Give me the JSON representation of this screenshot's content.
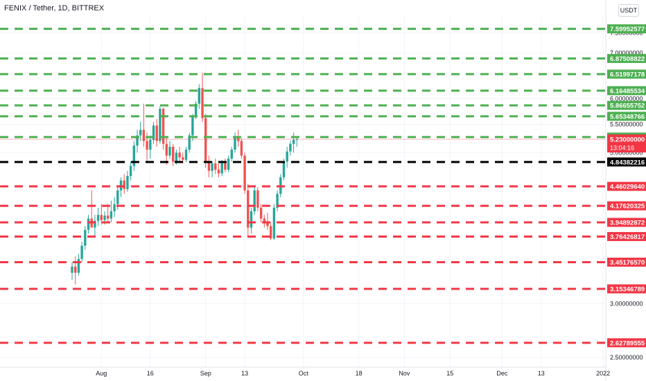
{
  "header": {
    "title": "FENIX / Tether, 1D, BITTREX",
    "currency_button": "USDT"
  },
  "chart_data": {
    "type": "candlestick",
    "symbol": "FENIX / Tether, 1D, BITTREX",
    "y_scale": "log",
    "ylim": [
      2.42,
      7.92
    ],
    "y_ticks": [
      {
        "v": 7.5,
        "label": "7.50000000"
      },
      {
        "v": 7.0,
        "label": "7.00000000"
      },
      {
        "v": 6.0,
        "label": "6.00000000"
      },
      {
        "v": 5.5,
        "label": "5.50000000"
      },
      {
        "v": 5.0,
        "label": "5.00000000"
      },
      {
        "v": 3.0,
        "label": "3.00000000"
      },
      {
        "v": 2.5,
        "label": "2.50000000"
      }
    ],
    "x_ticks": [
      {
        "day": 29,
        "label": "Aug"
      },
      {
        "day": 44,
        "label": "16"
      },
      {
        "day": 61,
        "label": "Sep"
      },
      {
        "day": 73,
        "label": "13"
      },
      {
        "day": 91,
        "label": "Oct"
      },
      {
        "day": 108,
        "label": "18"
      },
      {
        "day": 122,
        "label": "Nov"
      },
      {
        "day": 136,
        "label": "15"
      },
      {
        "day": 152,
        "label": "Dec"
      },
      {
        "day": 164,
        "label": "13"
      },
      {
        "day": 183,
        "label": "2022"
      }
    ],
    "levels": [
      {
        "value": 7.59952577,
        "label": "7.59952577",
        "color": "#4caf50"
      },
      {
        "value": 6.87508822,
        "label": "6.87508822",
        "color": "#4caf50"
      },
      {
        "value": 6.51997178,
        "label": "6.51997178",
        "color": "#4caf50"
      },
      {
        "value": 6.16485534,
        "label": "6.16485534",
        "color": "#4caf50"
      },
      {
        "value": 5.86655752,
        "label": "5.86655752",
        "color": "#4caf50"
      },
      {
        "value": 5.65348766,
        "label": "5.65348766",
        "color": "#4caf50"
      },
      {
        "value": 5.2699619,
        "label": "5.26996190",
        "color": "#4caf50"
      },
      {
        "value": 4.84382216,
        "label": "4.84382216",
        "color": "#000000"
      },
      {
        "value": 4.4602964,
        "label": "4.46029640",
        "color": "#f23645"
      },
      {
        "value": 4.17620325,
        "label": "4.17620325",
        "color": "#f23645"
      },
      {
        "value": 3.94892872,
        "label": "3.94892872",
        "color": "#f23645"
      },
      {
        "value": 3.76426817,
        "label": "3.76426817",
        "color": "#f23645"
      },
      {
        "value": 3.4517657,
        "label": "3.45176570",
        "color": "#f23645"
      },
      {
        "value": 3.15346789,
        "label": "3.15346789",
        "color": "#f23645"
      },
      {
        "value": 2.62789555,
        "label": "2.62789555",
        "color": "#f23645"
      }
    ],
    "last_price": {
      "value": 5.23,
      "label": "5.23000000",
      "countdown": "13:04:16",
      "color": "#f23645"
    },
    "colors": {
      "up": "#26a69a",
      "down": "#ef5350"
    },
    "candles": [
      {
        "d": 20,
        "o": 3.33,
        "h": 3.45,
        "l": 3.25,
        "c": 3.4
      },
      {
        "d": 21,
        "o": 3.4,
        "h": 3.52,
        "l": 3.2,
        "c": 3.33
      },
      {
        "d": 22,
        "o": 3.33,
        "h": 3.55,
        "l": 3.3,
        "c": 3.49
      },
      {
        "d": 23,
        "o": 3.49,
        "h": 3.7,
        "l": 3.45,
        "c": 3.65
      },
      {
        "d": 24,
        "o": 3.65,
        "h": 3.9,
        "l": 3.6,
        "c": 3.85
      },
      {
        "d": 25,
        "o": 3.85,
        "h": 4.05,
        "l": 3.8,
        "c": 4.0
      },
      {
        "d": 26,
        "o": 4.0,
        "h": 4.4,
        "l": 3.9,
        "c": 3.88
      },
      {
        "d": 27,
        "o": 3.88,
        "h": 4.05,
        "l": 3.75,
        "c": 3.97
      },
      {
        "d": 28,
        "o": 3.97,
        "h": 4.15,
        "l": 3.9,
        "c": 4.05
      },
      {
        "d": 29,
        "o": 4.05,
        "h": 4.2,
        "l": 3.92,
        "c": 3.98
      },
      {
        "d": 30,
        "o": 3.98,
        "h": 4.1,
        "l": 3.92,
        "c": 4.04
      },
      {
        "d": 31,
        "o": 4.04,
        "h": 4.2,
        "l": 3.95,
        "c": 4.0
      },
      {
        "d": 32,
        "o": 4.0,
        "h": 4.25,
        "l": 3.95,
        "c": 4.1
      },
      {
        "d": 33,
        "o": 4.1,
        "h": 4.3,
        "l": 4.02,
        "c": 4.2
      },
      {
        "d": 34,
        "o": 4.2,
        "h": 4.45,
        "l": 4.12,
        "c": 4.4
      },
      {
        "d": 35,
        "o": 4.4,
        "h": 4.6,
        "l": 4.3,
        "c": 4.55
      },
      {
        "d": 36,
        "o": 4.55,
        "h": 4.65,
        "l": 4.35,
        "c": 4.42
      },
      {
        "d": 37,
        "o": 4.42,
        "h": 4.7,
        "l": 4.38,
        "c": 4.62
      },
      {
        "d": 38,
        "o": 4.62,
        "h": 4.85,
        "l": 4.55,
        "c": 4.78
      },
      {
        "d": 39,
        "o": 4.78,
        "h": 5.2,
        "l": 4.7,
        "c": 5.12
      },
      {
        "d": 40,
        "o": 5.12,
        "h": 5.4,
        "l": 5.0,
        "c": 5.3
      },
      {
        "d": 41,
        "o": 5.3,
        "h": 5.55,
        "l": 5.2,
        "c": 5.4
      },
      {
        "d": 42,
        "o": 5.4,
        "h": 5.9,
        "l": 5.1,
        "c": 5.2
      },
      {
        "d": 43,
        "o": 5.2,
        "h": 5.35,
        "l": 4.85,
        "c": 5.05
      },
      {
        "d": 44,
        "o": 5.05,
        "h": 5.3,
        "l": 4.9,
        "c": 5.22
      },
      {
        "d": 45,
        "o": 5.22,
        "h": 5.55,
        "l": 5.15,
        "c": 5.48
      },
      {
        "d": 46,
        "o": 5.48,
        "h": 5.6,
        "l": 5.1,
        "c": 5.2
      },
      {
        "d": 47,
        "o": 5.2,
        "h": 5.85,
        "l": 5.15,
        "c": 5.8
      },
      {
        "d": 48,
        "o": 5.8,
        "h": 5.82,
        "l": 5.05,
        "c": 5.15
      },
      {
        "d": 49,
        "o": 5.15,
        "h": 5.25,
        "l": 4.8,
        "c": 4.95
      },
      {
        "d": 50,
        "o": 4.95,
        "h": 5.2,
        "l": 4.9,
        "c": 5.1
      },
      {
        "d": 51,
        "o": 5.1,
        "h": 5.15,
        "l": 4.78,
        "c": 4.85
      },
      {
        "d": 52,
        "o": 4.85,
        "h": 5.05,
        "l": 4.8,
        "c": 5.0
      },
      {
        "d": 53,
        "o": 5.0,
        "h": 5.1,
        "l": 4.85,
        "c": 4.92
      },
      {
        "d": 54,
        "o": 4.92,
        "h": 5.0,
        "l": 4.82,
        "c": 4.88
      },
      {
        "d": 55,
        "o": 4.88,
        "h": 5.1,
        "l": 4.84,
        "c": 5.05
      },
      {
        "d": 56,
        "o": 5.05,
        "h": 5.35,
        "l": 5.0,
        "c": 5.3
      },
      {
        "d": 57,
        "o": 5.3,
        "h": 5.7,
        "l": 5.2,
        "c": 5.65
      },
      {
        "d": 58,
        "o": 5.65,
        "h": 5.95,
        "l": 5.6,
        "c": 5.9
      },
      {
        "d": 59,
        "o": 5.9,
        "h": 6.3,
        "l": 5.8,
        "c": 6.22
      },
      {
        "d": 60,
        "o": 6.22,
        "h": 6.55,
        "l": 5.55,
        "c": 5.62
      },
      {
        "d": 61,
        "o": 5.62,
        "h": 5.7,
        "l": 4.75,
        "c": 4.85
      },
      {
        "d": 62,
        "o": 4.85,
        "h": 4.95,
        "l": 4.6,
        "c": 4.7
      },
      {
        "d": 63,
        "o": 4.7,
        "h": 4.85,
        "l": 4.6,
        "c": 4.82
      },
      {
        "d": 64,
        "o": 4.82,
        "h": 4.9,
        "l": 4.65,
        "c": 4.72
      },
      {
        "d": 65,
        "o": 4.72,
        "h": 4.82,
        "l": 4.6,
        "c": 4.66
      },
      {
        "d": 66,
        "o": 4.66,
        "h": 4.88,
        "l": 4.62,
        "c": 4.84
      },
      {
        "d": 67,
        "o": 4.84,
        "h": 4.9,
        "l": 4.68,
        "c": 4.72
      },
      {
        "d": 68,
        "o": 4.72,
        "h": 4.95,
        "l": 4.68,
        "c": 4.9
      },
      {
        "d": 69,
        "o": 4.9,
        "h": 5.1,
        "l": 4.85,
        "c": 5.05
      },
      {
        "d": 70,
        "o": 5.05,
        "h": 5.35,
        "l": 5.0,
        "c": 5.28
      },
      {
        "d": 71,
        "o": 5.28,
        "h": 5.4,
        "l": 5.1,
        "c": 5.2
      },
      {
        "d": 72,
        "o": 5.2,
        "h": 5.25,
        "l": 4.9,
        "c": 4.95
      },
      {
        "d": 73,
        "o": 4.95,
        "h": 5.0,
        "l": 4.35,
        "c": 4.4
      },
      {
        "d": 74,
        "o": 4.4,
        "h": 4.5,
        "l": 3.75,
        "c": 3.88
      },
      {
        "d": 75,
        "o": 3.88,
        "h": 4.15,
        "l": 3.8,
        "c": 4.1
      },
      {
        "d": 76,
        "o": 4.1,
        "h": 4.45,
        "l": 4.05,
        "c": 4.4
      },
      {
        "d": 77,
        "o": 4.4,
        "h": 4.45,
        "l": 4.1,
        "c": 4.15
      },
      {
        "d": 78,
        "o": 4.15,
        "h": 4.2,
        "l": 3.95,
        "c": 4.0
      },
      {
        "d": 79,
        "o": 4.0,
        "h": 4.05,
        "l": 3.88,
        "c": 3.95
      },
      {
        "d": 80,
        "o": 3.95,
        "h": 4.08,
        "l": 3.85,
        "c": 3.9
      },
      {
        "d": 81,
        "o": 3.9,
        "h": 3.95,
        "l": 3.72,
        "c": 3.74
      },
      {
        "d": 82,
        "o": 3.74,
        "h": 4.2,
        "l": 3.72,
        "c": 4.15
      },
      {
        "d": 83,
        "o": 4.15,
        "h": 4.4,
        "l": 4.1,
        "c": 4.35
      },
      {
        "d": 84,
        "o": 4.35,
        "h": 4.65,
        "l": 4.3,
        "c": 4.6
      },
      {
        "d": 85,
        "o": 4.6,
        "h": 4.9,
        "l": 4.55,
        "c": 4.85
      },
      {
        "d": 86,
        "o": 4.85,
        "h": 5.1,
        "l": 4.75,
        "c": 5.02
      },
      {
        "d": 87,
        "o": 5.02,
        "h": 5.2,
        "l": 4.95,
        "c": 5.15
      },
      {
        "d": 88,
        "o": 5.15,
        "h": 5.35,
        "l": 5.0,
        "c": 5.22
      },
      {
        "d": 89,
        "o": 5.22,
        "h": 5.28,
        "l": 5.1,
        "c": 5.23
      }
    ]
  }
}
